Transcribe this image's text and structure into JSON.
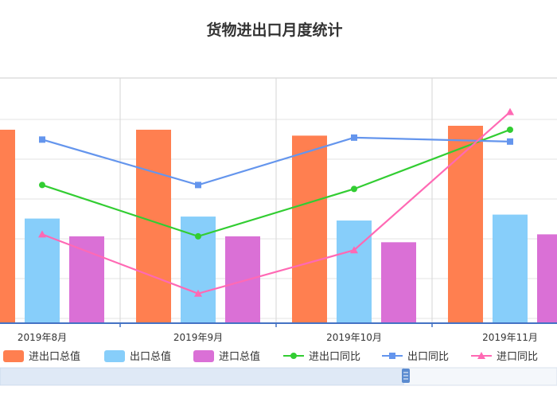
{
  "chart_data": {
    "type": "bar",
    "title": "货物进出口月度统计",
    "categories": [
      "2019年8月",
      "2019年9月",
      "2019年10月",
      "2019年11月"
    ],
    "ylim": [
      0,
      100
    ],
    "y2lim": [
      0,
      100
    ],
    "grid": true,
    "legend_position": "bottom",
    "series": [
      {
        "name": "进出口总值",
        "kind": "bar",
        "axis": "left",
        "color": "#FF7F50",
        "values": [
          98,
          98,
          95,
          100
        ]
      },
      {
        "name": "出口总值",
        "kind": "bar",
        "axis": "left",
        "color": "#87CEFA",
        "values": [
          53,
          54,
          52,
          55
        ]
      },
      {
        "name": "进口总值",
        "kind": "bar",
        "axis": "left",
        "color": "#DA70D6",
        "values": [
          44,
          44,
          41,
          45
        ]
      },
      {
        "name": "进出口同比",
        "kind": "line",
        "axis": "right",
        "marker": "circle",
        "color": "#32CD32",
        "values": [
          70,
          44,
          68,
          98
        ]
      },
      {
        "name": "出口同比",
        "kind": "line",
        "axis": "right",
        "marker": "square",
        "color": "#6495ED",
        "values": [
          93,
          70,
          94,
          92
        ]
      },
      {
        "name": "进口同比",
        "kind": "line",
        "axis": "right",
        "marker": "triangle",
        "color": "#FF69B4",
        "values": [
          45,
          15,
          37,
          107
        ]
      }
    ]
  }
}
